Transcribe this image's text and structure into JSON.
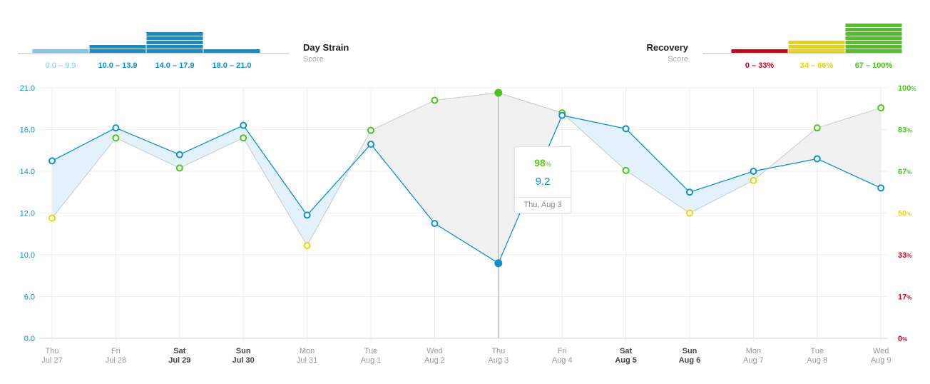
{
  "chart_data": {
    "type": "line",
    "strain_legend": {
      "title": "Day Strain",
      "subtitle": "Score",
      "ranges": [
        {
          "label": "0.0 – 9.9",
          "color": "#7cc7ee",
          "count": 0
        },
        {
          "label": "10.0 – 13.9",
          "color": "#0a92d0",
          "count": 2
        },
        {
          "label": "14.0 – 17.9",
          "color": "#0a92d0",
          "count": 5
        },
        {
          "label": "18.0 – 21.0",
          "color": "#0a92d0",
          "count": 0
        }
      ]
    },
    "recovery_legend": {
      "title": "Recovery",
      "subtitle": "Score",
      "ranges": [
        {
          "label": "0 – 33%",
          "color": "#d0021b",
          "count": 0
        },
        {
          "label": "34 – 66%",
          "color": "#e9d800",
          "count": 3
        },
        {
          "label": "67 – 100%",
          "color": "#4ac51a",
          "count": 7
        }
      ]
    },
    "x_labels": [
      {
        "day": "Thu",
        "date": "Jul 27",
        "bold": false
      },
      {
        "day": "Fri",
        "date": "Jul 28",
        "bold": false
      },
      {
        "day": "Sat",
        "date": "Jul 29",
        "bold": true
      },
      {
        "day": "Sun",
        "date": "Jul 30",
        "bold": true
      },
      {
        "day": "Mon",
        "date": "Jul 31",
        "bold": false
      },
      {
        "day": "Tue",
        "date": "Aug 1",
        "bold": false
      },
      {
        "day": "Wed",
        "date": "Aug 2",
        "bold": false
      },
      {
        "day": "Thu",
        "date": "Aug 3",
        "bold": false
      },
      {
        "day": "Fri",
        "date": "Aug 4",
        "bold": false
      },
      {
        "day": "Sat",
        "date": "Aug 5",
        "bold": true
      },
      {
        "day": "Sun",
        "date": "Aug 6",
        "bold": true
      },
      {
        "day": "Mon",
        "date": "Aug 7",
        "bold": false
      },
      {
        "day": "Tue",
        "date": "Aug 8",
        "bold": false
      },
      {
        "day": "Wed",
        "date": "Aug 9",
        "bold": false
      }
    ],
    "left_ticks": [
      "0.0",
      "6.0",
      "10.0",
      "12.0",
      "14.0",
      "16.0",
      "21.0"
    ],
    "right_ticks": [
      {
        "value": "0",
        "color": "#d0021b"
      },
      {
        "value": "17",
        "color": "#d0021b"
      },
      {
        "value": "33",
        "color": "#d0021b"
      },
      {
        "value": "50",
        "color": "#e9d800"
      },
      {
        "value": "67",
        "color": "#4ac51a"
      },
      {
        "value": "83",
        "color": "#4ac51a"
      },
      {
        "value": "100",
        "color": "#4ac51a"
      }
    ],
    "right_tick_suffix": "%",
    "strain_series": {
      "name": "Day Strain",
      "color": "#0a92d0",
      "values": [
        14.5,
        16.2,
        14.8,
        16.5,
        11.9,
        15.3,
        11.5,
        9.2,
        17.7,
        16.1,
        13.0,
        14.0,
        14.6,
        13.2
      ]
    },
    "recovery_series": {
      "name": "Recovery",
      "values": [
        48,
        80,
        68,
        80,
        37,
        83,
        95,
        98,
        90,
        67,
        50,
        63,
        84,
        92
      ]
    },
    "recovery_colors": {
      "red": "#d0021b",
      "yellow": "#e9d800",
      "green": "#4ac51a"
    },
    "selected_index": 7,
    "tooltip": {
      "recovery": "98",
      "recovery_unit": "%",
      "strain": "9.2",
      "date": "Thu, Aug 3"
    }
  }
}
